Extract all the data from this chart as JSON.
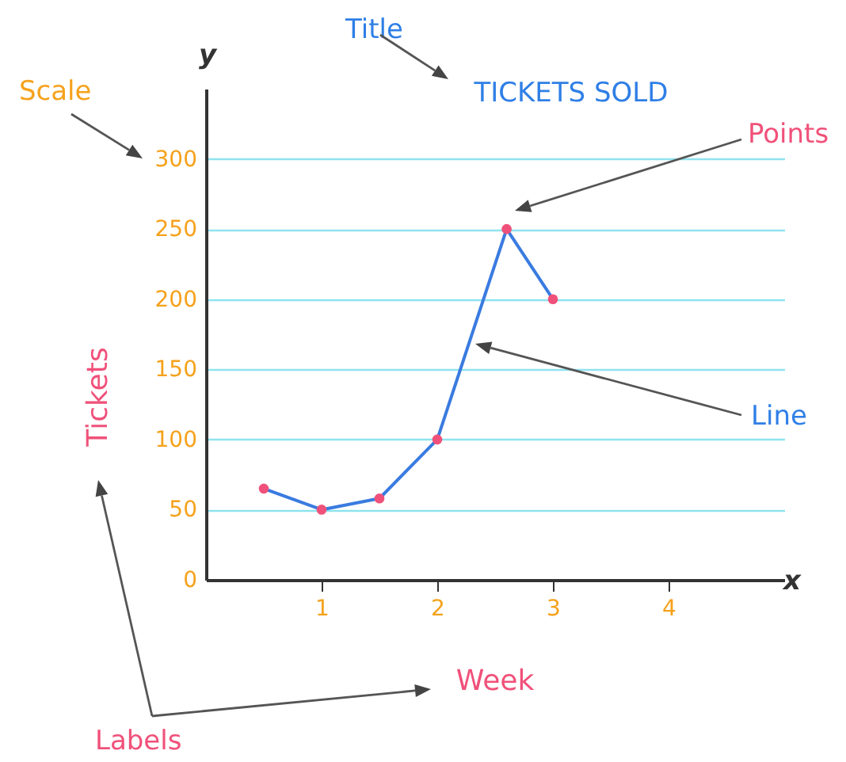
{
  "chart_data": {
    "type": "line",
    "title": "TICKETS SOLD",
    "xlabel": "Week",
    "ylabel": "Tickets",
    "annotations": [
      "Title",
      "Scale",
      "Points",
      "Line",
      "Labels",
      "y",
      "x"
    ],
    "x": [
      0.5,
      1,
      1.5,
      2,
      2.6,
      3
    ],
    "series": [
      {
        "color": "#3a7be0",
        "marker": "none",
        "values": [
          65,
          50,
          58,
          100,
          250,
          200
        ]
      },
      {
        "type": "scatter",
        "color": "#f0517a",
        "marker": "circle",
        "values": [
          65,
          50,
          58,
          100,
          250,
          200
        ]
      }
    ],
    "xlim": [
      0,
      5
    ],
    "xticks": [
      1,
      2,
      3,
      4
    ],
    "ylim": [
      0,
      350
    ],
    "yticks": [
      0,
      50,
      100,
      150,
      200,
      250,
      300
    ],
    "grid": "y"
  }
}
